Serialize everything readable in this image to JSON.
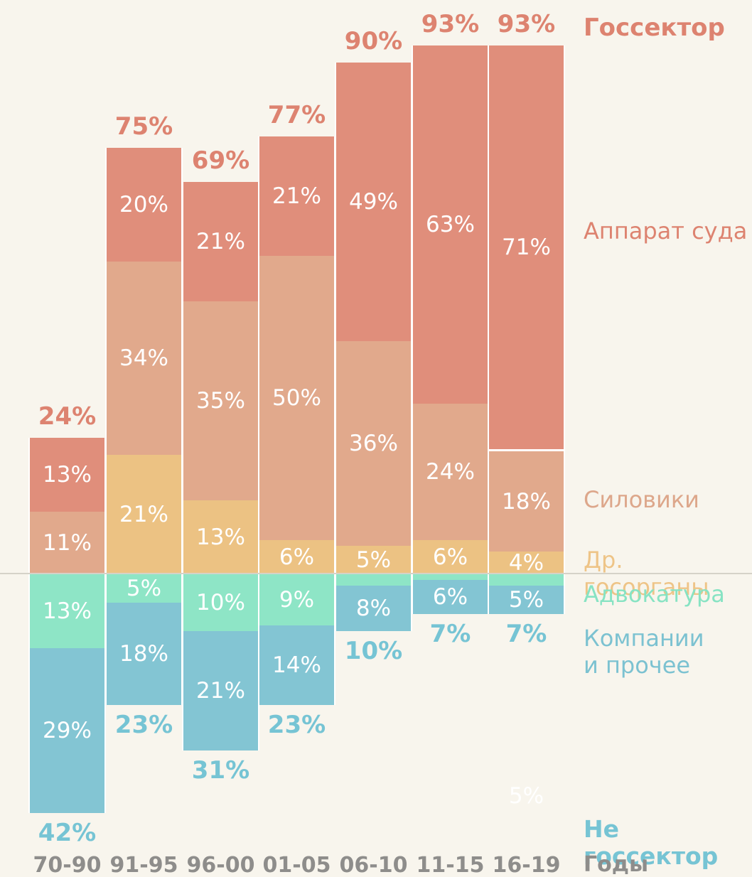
{
  "colors": {
    "background": "#f8f5ed",
    "salmon": "#e08e7b",
    "peach": "#e1a98c",
    "tan": "#ecc283",
    "mint": "#8ee5c6",
    "blue": "#83c5d3",
    "salmon-text": "#dd8370",
    "peach-text": "#dda78b",
    "tan-text": "#eec487",
    "mint-text": "#87e3c3",
    "blue-text": "#7cc2d1",
    "teal-text": "#76c4d4",
    "gray-text": "#8e8d8b",
    "axis-line": "#d5d2c8",
    "white": "#ffffff"
  },
  "legend": {
    "above_title": "Госсектор",
    "below_title": "Не госсектор",
    "axis_title": "Годы",
    "court_apparatus": "Аппарат суда",
    "security_forces": "Силовики",
    "other_state_organs": "Др. госорганы",
    "advocacy": "Адвокатура",
    "companies_label": "Компании\nи прочее"
  },
  "stray_label": "5%",
  "chart_data": {
    "type": "diverging_stacked_bar",
    "unit": "%",
    "x_axis_title": "Годы",
    "categories": [
      "70-90",
      "91-95",
      "96-00",
      "01-05",
      "06-10",
      "11-15",
      "16-19"
    ],
    "series": [
      {
        "name": "Аппарат суда",
        "key": "court-apparatus",
        "side": "above",
        "color": "#e08e7b",
        "values": [
          13,
          20,
          21,
          21,
          49,
          63,
          71
        ]
      },
      {
        "name": "Силовики",
        "key": "security-forces",
        "side": "above",
        "color": "#e1a98c",
        "values": [
          11,
          34,
          35,
          50,
          36,
          24,
          18
        ]
      },
      {
        "name": "Др. госорганы",
        "key": "other-state-organs",
        "side": "above",
        "color": "#ecc283",
        "values": [
          0,
          21,
          13,
          6,
          5,
          6,
          4
        ]
      },
      {
        "name": "Адвокатура",
        "key": "advocacy",
        "side": "below",
        "color": "#8ee5c6",
        "values": [
          13,
          5,
          10,
          9,
          2,
          1,
          2
        ]
      },
      {
        "name": "Компании и прочее",
        "key": "companies-other",
        "side": "below",
        "color": "#83c5d3",
        "values": [
          29,
          18,
          21,
          14,
          8,
          6,
          5
        ]
      }
    ],
    "totals_above": [
      24,
      75,
      69,
      77,
      90,
      93,
      93
    ],
    "totals_below": [
      42,
      23,
      31,
      23,
      10,
      7,
      7
    ],
    "min_label_value": 4,
    "white_divider": {
      "category_index": 6,
      "between": [
        "Аппарат суда",
        "Силовики"
      ]
    },
    "legend_position": "right",
    "grid": false
  }
}
